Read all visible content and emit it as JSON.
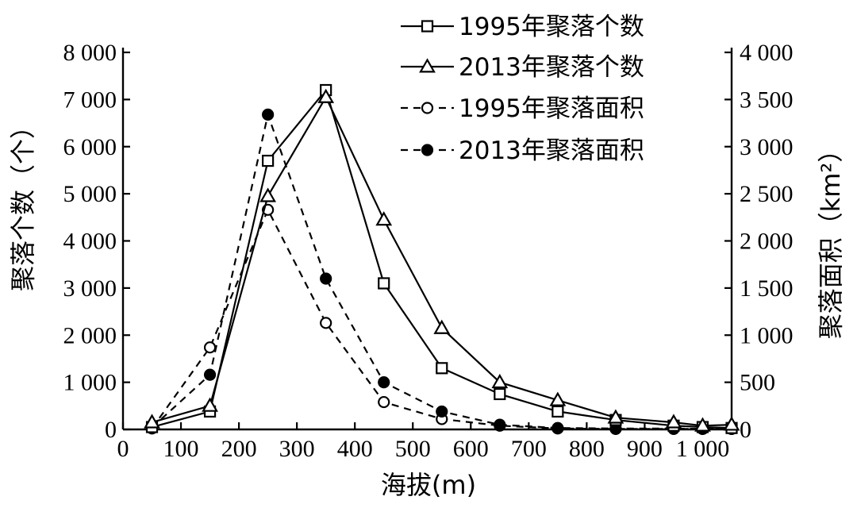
{
  "chart_data": {
    "type": "line",
    "title": "",
    "xlabel": "海拔(m)",
    "ylabel_left": "聚落个数（个）",
    "ylabel_right": "聚落面积（km²）",
    "xlim": [
      0,
      1050
    ],
    "ylim_left": [
      0,
      8000
    ],
    "ylim_right": [
      0,
      4000
    ],
    "x_ticks": [
      0,
      100,
      200,
      300,
      400,
      500,
      600,
      700,
      800,
      900,
      1000
    ],
    "x_tick_labels": [
      "0",
      "100",
      "200",
      "300",
      "400",
      "500",
      "600",
      "700",
      "800",
      "900",
      "1 000"
    ],
    "y_left_ticks": [
      0,
      1000,
      2000,
      3000,
      4000,
      5000,
      6000,
      7000,
      8000
    ],
    "y_left_tick_labels": [
      "0",
      "1 000",
      "2 000",
      "3 000",
      "4 000",
      "5 000",
      "6 000",
      "7 000",
      "8 000"
    ],
    "y_right_ticks": [
      0,
      500,
      1000,
      1500,
      2000,
      2500,
      3000,
      3500,
      4000
    ],
    "y_right_tick_labels": [
      "0",
      "500",
      "1 000",
      "1 500",
      "2 000",
      "2 500",
      "3 000",
      "3 500",
      "4 000"
    ],
    "grid": false,
    "legend_position": "top-right",
    "series": [
      {
        "name": "1995年聚落个数",
        "axis": "left",
        "marker": "square",
        "line": "solid",
        "x": [
          50,
          150,
          250,
          350,
          450,
          550,
          650,
          750,
          850,
          950,
          1000,
          1050
        ],
        "y": [
          50,
          380,
          5700,
          7200,
          3100,
          1300,
          750,
          380,
          200,
          80,
          50,
          30
        ]
      },
      {
        "name": "2013年聚落个数",
        "axis": "left",
        "marker": "triangle",
        "line": "solid",
        "x": [
          50,
          150,
          250,
          350,
          450,
          550,
          650,
          750,
          850,
          950,
          1000,
          1050
        ],
        "y": [
          150,
          500,
          4950,
          7050,
          4450,
          2150,
          1000,
          620,
          250,
          150,
          80,
          100
        ]
      },
      {
        "name": "1995年聚落面积",
        "axis": "right",
        "marker": "circle-open",
        "line": "dashed",
        "x": [
          50,
          150,
          250,
          350,
          450,
          550,
          650,
          750,
          850,
          950,
          1000,
          1050
        ],
        "y": [
          10,
          870,
          2330,
          1130,
          290,
          110,
          40,
          10,
          5,
          5,
          5,
          5
        ]
      },
      {
        "name": "2013年聚落面积",
        "axis": "right",
        "marker": "circle-filled",
        "line": "dashed",
        "x": [
          50,
          150,
          250,
          350,
          450,
          550,
          650,
          750,
          850,
          950,
          1000,
          1050
        ],
        "y": [
          20,
          580,
          3340,
          1600,
          500,
          190,
          50,
          15,
          10,
          10,
          5,
          5
        ]
      }
    ]
  }
}
